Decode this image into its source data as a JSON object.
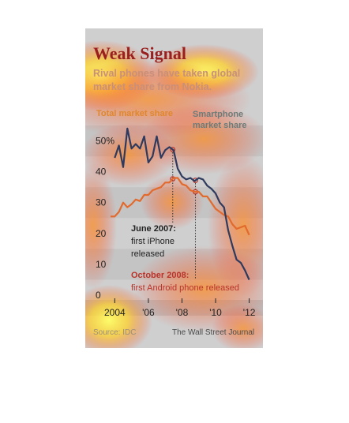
{
  "figure": {
    "title": "Weak Signal",
    "subtitle_line1": "Rival phones have taken global",
    "subtitle_line2": "market share from Nokia.",
    "annotation_iphone_line1": "June 2007:",
    "annotation_iphone_line2": "first iPhone",
    "annotation_iphone_line3": "released",
    "annotation_android_line1": "October 2008:",
    "annotation_android_line2": "first Android phone released",
    "source": "Source: IDC",
    "credit": "The Wall Street Journal"
  },
  "colors": {
    "total": "#e26a2c",
    "smartphone": "#2e3a5e",
    "title": "#9a1f1f",
    "panel": "#cfcfcf"
  },
  "chart_data": {
    "type": "line",
    "title": "Weak Signal",
    "xlabel": "",
    "ylabel": "",
    "xlim": [
      2003.75,
      2012.3
    ],
    "ylim": [
      0,
      55
    ],
    "yticks": [
      "50%",
      "40",
      "30",
      "20",
      "10",
      "0"
    ],
    "ytick_values": [
      50,
      40,
      30,
      20,
      10,
      0
    ],
    "xticks": [
      "2004",
      "'06",
      "'08",
      "'10",
      "'12"
    ],
    "xtick_values": [
      2004,
      2006,
      2008,
      2010,
      2012
    ],
    "grid": "horizontal bands",
    "legend": [
      {
        "name": "Total market share",
        "placement": "top-left"
      },
      {
        "name": "Smartphone market share",
        "placement": "top-right"
      }
    ],
    "series": [
      {
        "name": "Total market share",
        "x": [
          2003.75,
          2004,
          2004.25,
          2004.5,
          2004.75,
          2005,
          2005.25,
          2005.5,
          2005.75,
          2006,
          2006.25,
          2006.5,
          2006.75,
          2007,
          2007.25,
          2007.5,
          2007.75,
          2008,
          2008.25,
          2008.5,
          2008.75,
          2009,
          2009.25,
          2009.5,
          2009.75,
          2010,
          2010.25,
          2010.5,
          2010.75,
          2011,
          2011.25,
          2011.5,
          2011.75,
          2012
        ],
        "values": [
          25.5,
          25.5,
          27,
          30,
          28.5,
          29.5,
          31,
          30.5,
          32.5,
          32.5,
          34,
          34.5,
          35,
          36.5,
          36.5,
          38,
          38,
          36,
          35.5,
          34,
          33.5,
          33.5,
          32,
          32,
          30,
          28,
          27,
          26,
          25.5,
          23,
          21.5,
          22,
          22.5,
          19.5
        ]
      },
      {
        "name": "Smartphone market share",
        "x": [
          2004,
          2004.25,
          2004.5,
          2004.75,
          2005,
          2005.25,
          2005.5,
          2005.75,
          2006,
          2006.25,
          2006.5,
          2006.75,
          2007,
          2007.25,
          2007.5,
          2007.75,
          2008,
          2008.25,
          2008.5,
          2008.75,
          2009,
          2009.25,
          2009.5,
          2009.75,
          2010,
          2010.25,
          2010.5,
          2010.75,
          2011,
          2011.25,
          2011.5,
          2011.75,
          2012
        ],
        "values": [
          44.5,
          48.5,
          41.5,
          54,
          47.5,
          49,
          47.5,
          51.5,
          43,
          45,
          51.5,
          44.5,
          47,
          48,
          47,
          41,
          38.5,
          37.5,
          38,
          37,
          38,
          37.5,
          35.5,
          34.5,
          33,
          30,
          28.5,
          21,
          16,
          11.5,
          10.5,
          8,
          5
        ]
      }
    ],
    "annotations": [
      {
        "x": 2007.45,
        "label": "June 2007: first iPhone released"
      },
      {
        "x": 2008.8,
        "label": "October 2008: first Android phone released"
      }
    ]
  }
}
